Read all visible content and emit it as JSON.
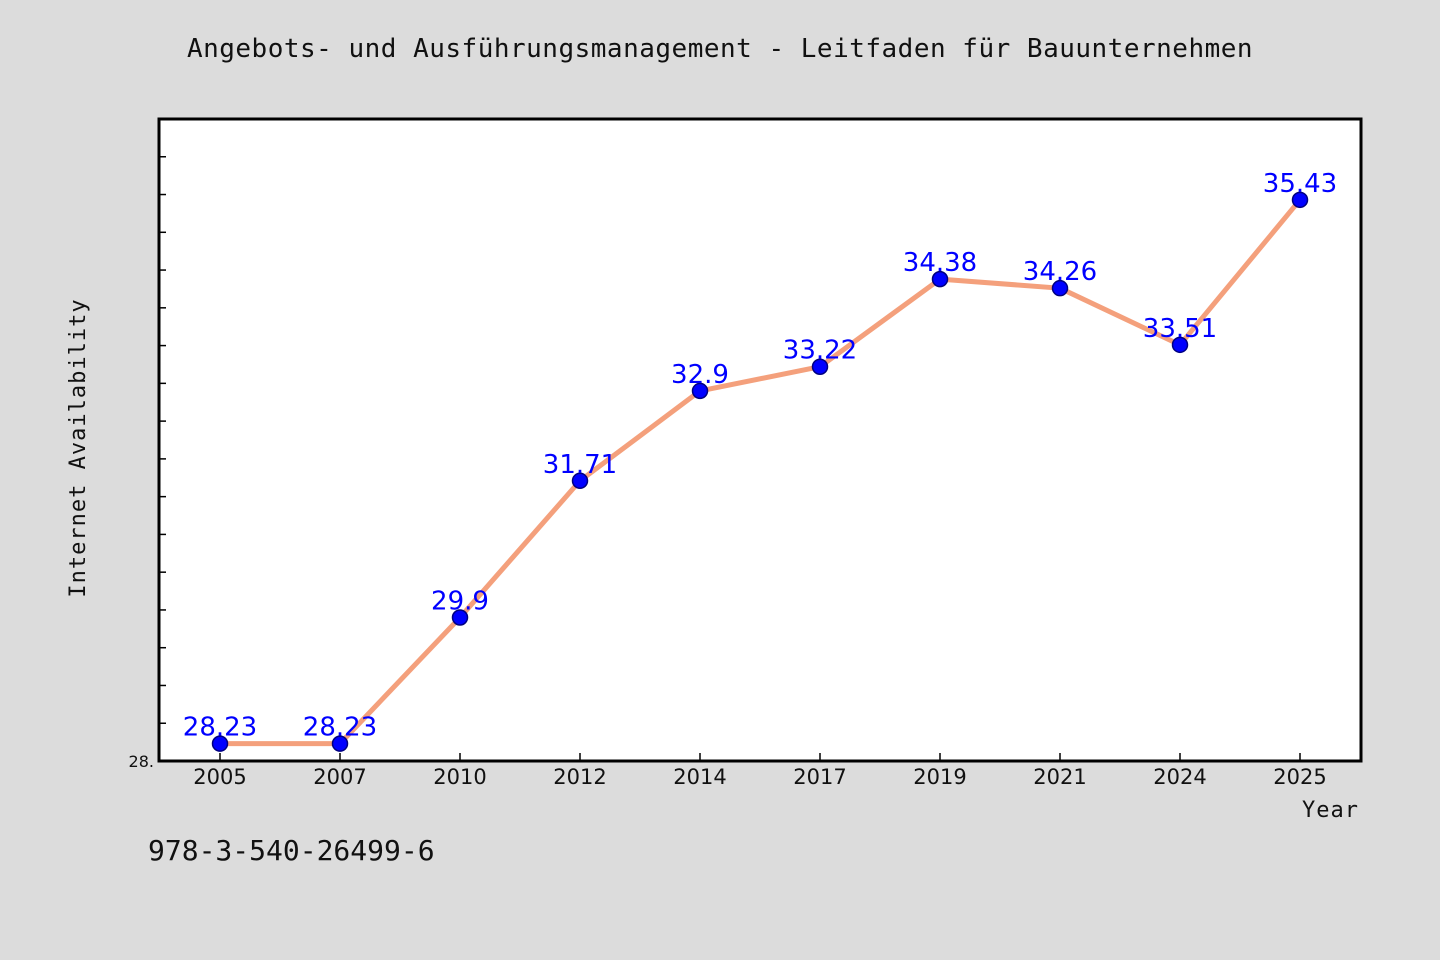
{
  "chart_data": {
    "type": "line",
    "title": "Angebots- und Ausführungsmanagement - Leitfaden für Bauunternehmen",
    "xlabel": "Year",
    "ylabel": "Internet Availability",
    "categories": [
      "2005",
      "2007",
      "2010",
      "2012",
      "2014",
      "2017",
      "2019",
      "2021",
      "2024",
      "2025"
    ],
    "series": [
      {
        "values": [
          28.23,
          28.23,
          29.9,
          31.71,
          32.9,
          33.22,
          34.38,
          34.26,
          33.51,
          35.43
        ],
        "data_labels": [
          "28.23",
          "28.23",
          "29.9",
          "31.71",
          "32.9",
          "33.22",
          "34.38",
          "34.26",
          "33.51",
          "35.43"
        ]
      }
    ],
    "ylim": [
      28.0,
      36.5
    ],
    "y_tick_labels": [
      "28."
    ],
    "grid": false,
    "legend": "none",
    "colors": {
      "line": "#f4a07c",
      "marker": "#0000ff",
      "marker_edge": "#000080",
      "data_label": "#0000ff"
    }
  },
  "footer": {
    "isbn": "978-3-540-26499-6"
  }
}
